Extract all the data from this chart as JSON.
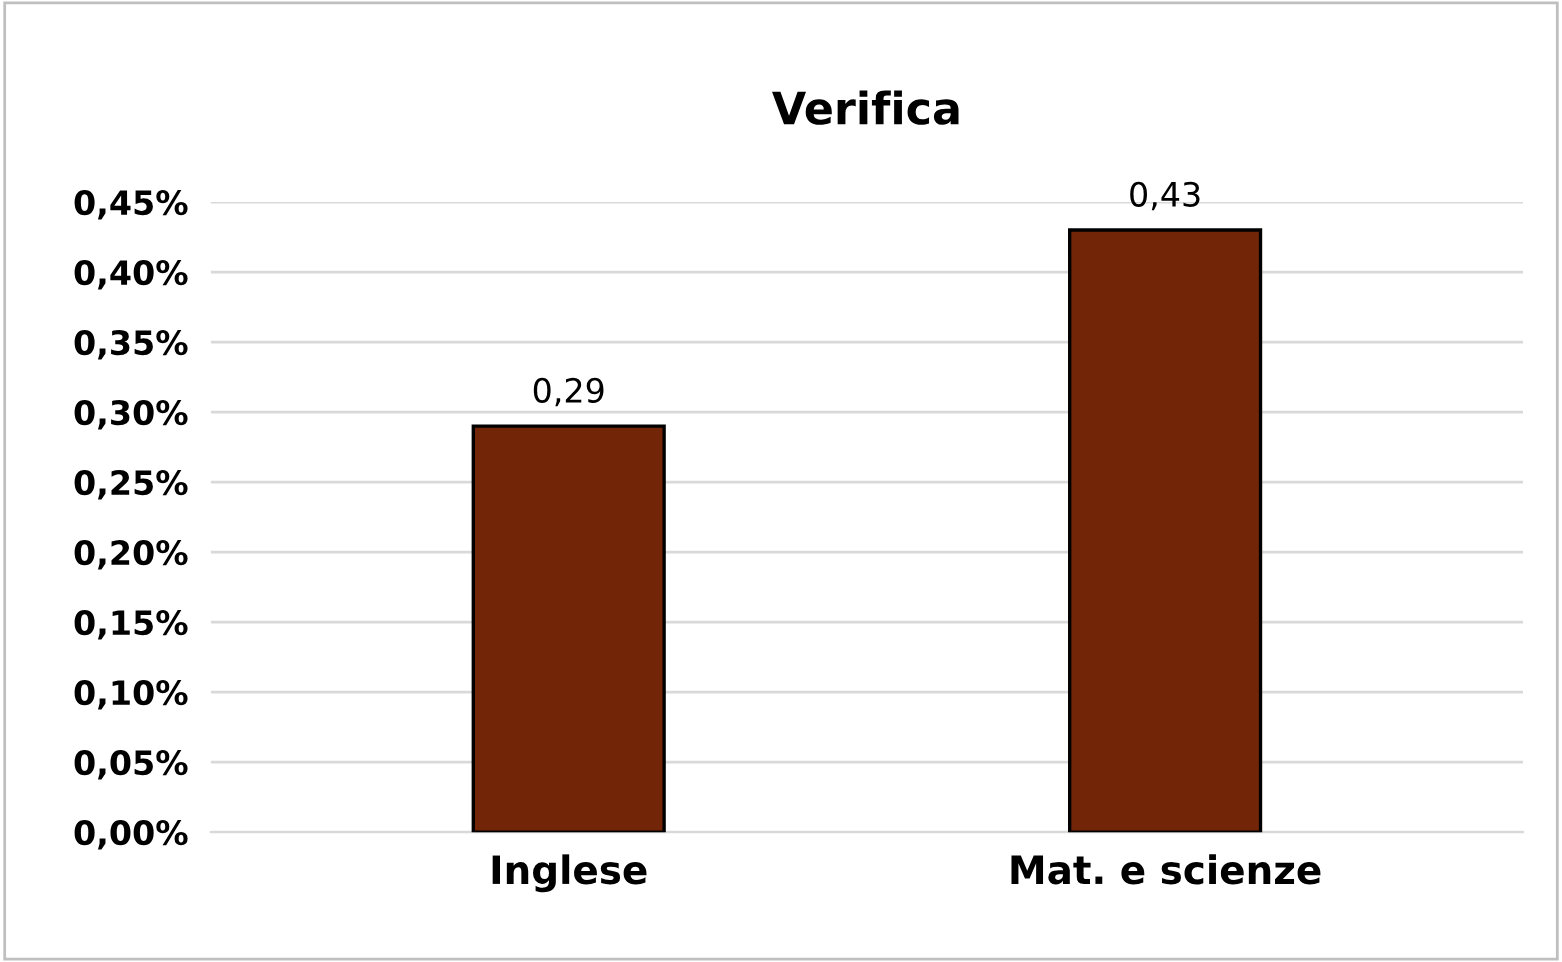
{
  "chart_data": {
    "type": "bar",
    "title": "Verifica",
    "categories": [
      "Inglese",
      "Mat. e scienze"
    ],
    "values": [
      0.29,
      0.43
    ],
    "value_labels": [
      "0,29",
      "0,43"
    ],
    "color": "#722607",
    "ylim": [
      0,
      0.45
    ],
    "yticks": [
      {
        "value": 0,
        "label": "0,00%"
      },
      {
        "value": 0.05,
        "label": "0,05%"
      },
      {
        "value": 0.1,
        "label": "0,10%"
      },
      {
        "value": 0.15,
        "label": "0,15%"
      },
      {
        "value": 0.2,
        "label": "0,20%"
      },
      {
        "value": 0.25,
        "label": "0,25%"
      },
      {
        "value": 0.3,
        "label": "0,30%"
      },
      {
        "value": 0.35,
        "label": "0,35%"
      },
      {
        "value": 0.4,
        "label": "0,40%"
      },
      {
        "value": 0.45,
        "label": "0,45%"
      }
    ],
    "grid": "y"
  }
}
